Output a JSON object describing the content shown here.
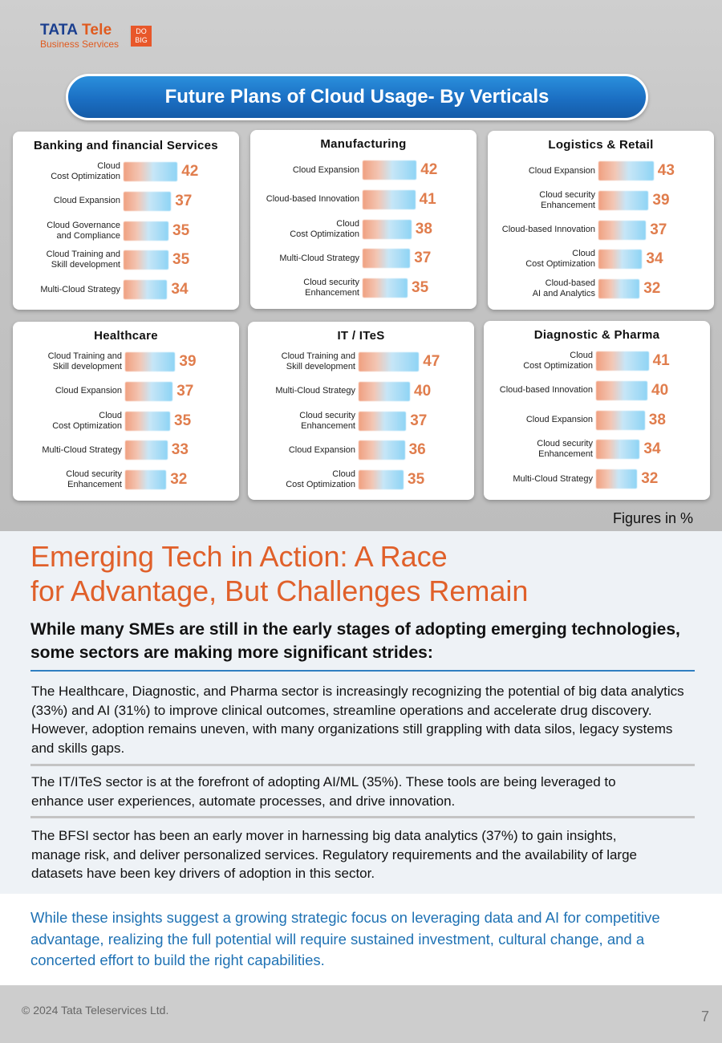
{
  "logo": {
    "brand": "TATA",
    "tele": "Tele",
    "sub": "Business Services",
    "badge": "DO BIG"
  },
  "banner_title": "Future Plans of Cloud Usage- By Verticals",
  "figures_note": "Figures in %",
  "chart_data": [
    {
      "type": "bar",
      "title": "Banking and financial Services",
      "categories": [
        "Cloud\nCost Optimization",
        "Cloud Expansion",
        "Cloud Governance\nand Compliance",
        "Cloud Training and\nSkill development",
        "Multi-Cloud Strategy"
      ],
      "values": [
        42,
        37,
        35,
        35,
        34
      ]
    },
    {
      "type": "bar",
      "title": "Manufacturing",
      "categories": [
        "Cloud Expansion",
        "Cloud-based Innovation",
        "Cloud\nCost Optimization",
        "Multi-Cloud Strategy",
        "Cloud security\nEnhancement"
      ],
      "values": [
        42,
        41,
        38,
        37,
        35
      ]
    },
    {
      "type": "bar",
      "title": "Logistics & Retail",
      "categories": [
        "Cloud Expansion",
        "Cloud security\nEnhancement",
        "Cloud-based Innovation",
        "Cloud\nCost Optimization",
        "Cloud-based\nAI and Analytics"
      ],
      "values": [
        43,
        39,
        37,
        34,
        32
      ]
    },
    {
      "type": "bar",
      "title": "Healthcare",
      "categories": [
        "Cloud Training and\nSkill development",
        "Cloud Expansion",
        "Cloud\nCost Optimization",
        "Multi-Cloud Strategy",
        "Cloud security\nEnhancement"
      ],
      "values": [
        39,
        37,
        35,
        33,
        32
      ]
    },
    {
      "type": "bar",
      "title": "IT / ITeS",
      "categories": [
        "Cloud Training and\nSkill development",
        "Multi-Cloud Strategy",
        "Cloud security\nEnhancement",
        "Cloud  Expansion",
        "Cloud\nCost Optimization"
      ],
      "values": [
        47,
        40,
        37,
        36,
        35
      ]
    },
    {
      "type": "bar",
      "title": "Diagnostic & Pharma",
      "categories": [
        "Cloud\nCost Optimization",
        "Cloud-based Innovation",
        "Cloud Expansion",
        "Cloud security\nEnhancement",
        "Multi-Cloud Strategy"
      ],
      "values": [
        41,
        40,
        38,
        34,
        32
      ]
    }
  ],
  "article": {
    "heading_line1": "Emerging Tech in Action: A Race",
    "heading_line2": "for Advantage, But Challenges Remain",
    "subheading": "While many SMEs are still in the early stages of adopting emerging technologies, some sectors are making more significant strides:",
    "para1": "The Healthcare, Diagnostic, and Pharma sector is increasingly recognizing the potential of big data analytics (33%) and AI (31%) to improve clinical outcomes, streamline operations and accelerate drug discovery. However, adoption remains uneven, with many organizations still grappling with data silos, legacy systems and skills gaps.",
    "para2": "The IT/ITeS sector is at the forefront of adopting AI/ML (35%). These tools are being leveraged to enhance user experiences, automate processes, and drive innovation.",
    "para3": "The BFSI sector has been an early mover in harnessing big data analytics (37%) to gain insights, manage risk, and deliver personalized services. Regulatory requirements and the availability of large datasets have been key drivers of adoption in this sector.",
    "closing": "While these insights suggest a growing strategic focus on leveraging data and AI for competitive advantage, realizing the full potential will require sustained investment, cultural change, and a concerted effort to build the right capabilities."
  },
  "footer": {
    "copyright": "© 2024 Tata Teleservices Ltd.",
    "page": "7"
  },
  "colors": {
    "accent_orange": "#e0602a",
    "accent_blue": "#1f72b4",
    "value_orange": "#e07d4d"
  }
}
